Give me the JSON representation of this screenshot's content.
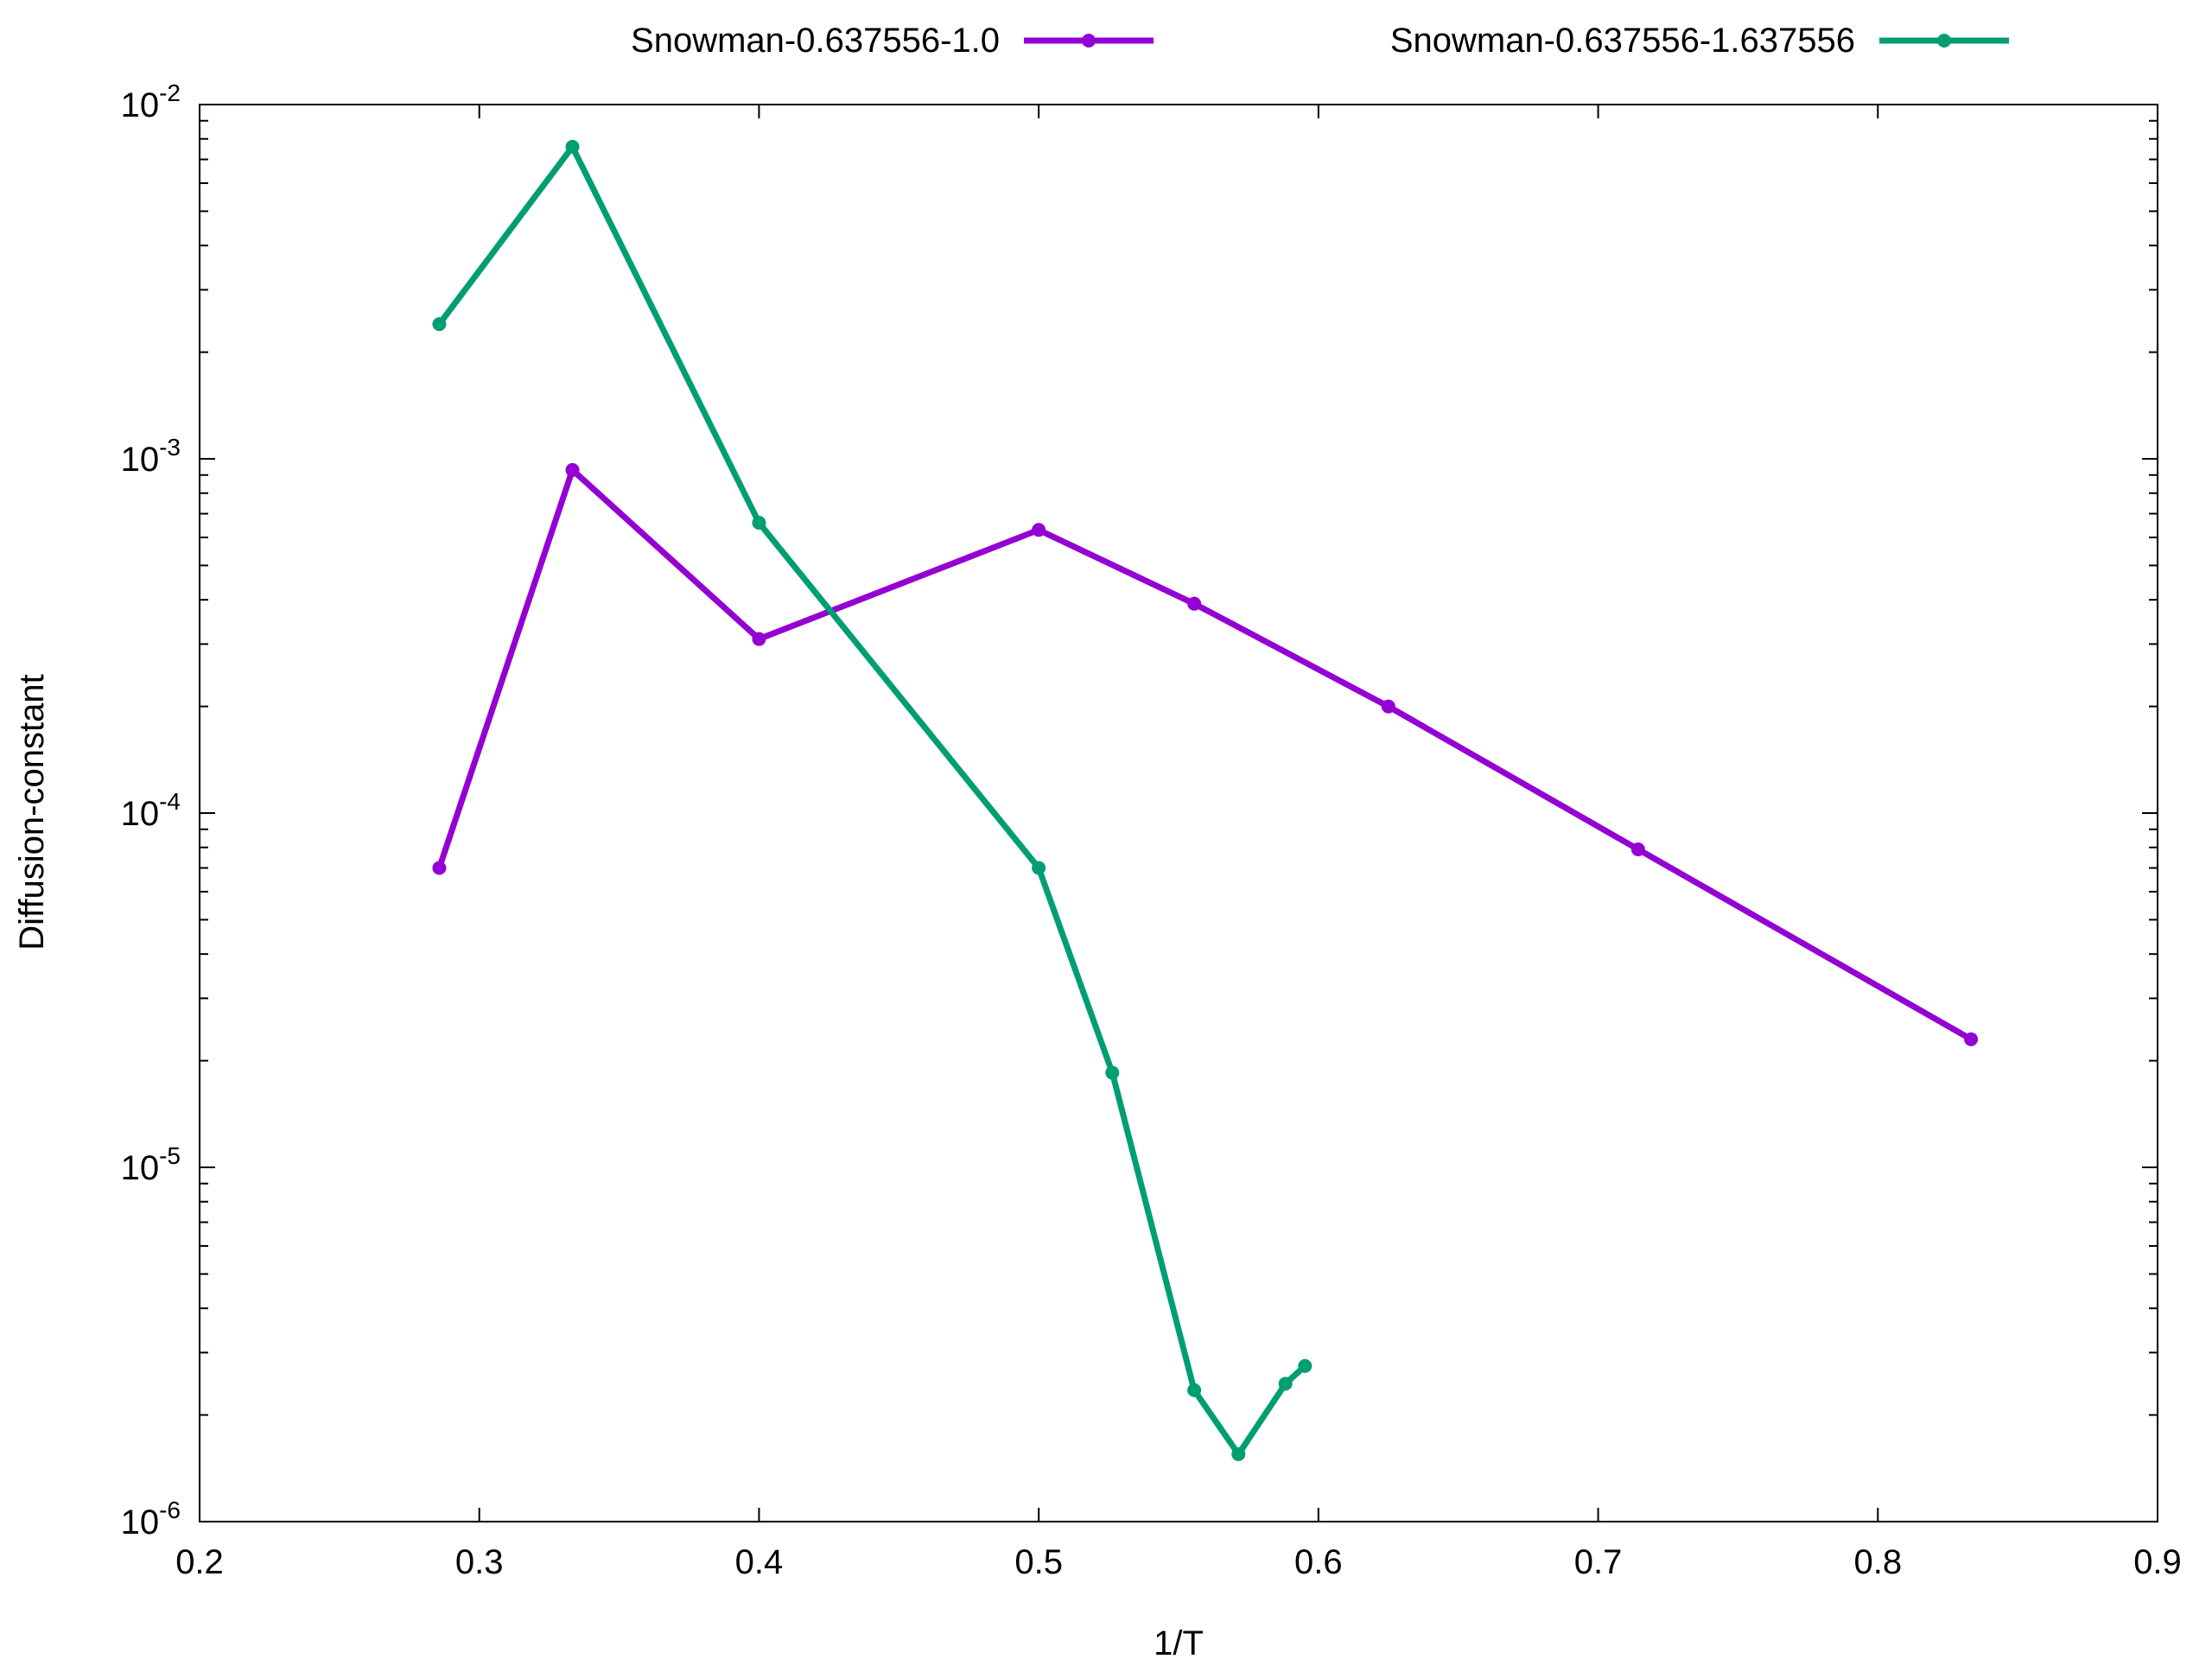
{
  "chart_data": {
    "type": "line",
    "title": "",
    "xlabel": "1/T",
    "ylabel": "Diffusion-constant",
    "xscale": "linear",
    "yscale": "log",
    "xlim": [
      0.2,
      0.9
    ],
    "ylim": [
      1e-06,
      0.01
    ],
    "grid": false,
    "legend_position": "top",
    "x_ticks": [
      {
        "value": 0.2,
        "label": "0.2"
      },
      {
        "value": 0.3,
        "label": "0.3"
      },
      {
        "value": 0.4,
        "label": "0.4"
      },
      {
        "value": 0.5,
        "label": "0.5"
      },
      {
        "value": 0.6,
        "label": "0.6"
      },
      {
        "value": 0.7,
        "label": "0.7"
      },
      {
        "value": 0.8,
        "label": "0.8"
      },
      {
        "value": 0.9,
        "label": "0.9"
      }
    ],
    "y_ticks": [
      {
        "value": 1e-06,
        "mantissa": "10",
        "exponent": "-6"
      },
      {
        "value": 1e-05,
        "mantissa": "10",
        "exponent": "-5"
      },
      {
        "value": 0.0001,
        "mantissa": "10",
        "exponent": "-4"
      },
      {
        "value": 0.001,
        "mantissa": "10",
        "exponent": "-3"
      },
      {
        "value": 0.01,
        "mantissa": "10",
        "exponent": "-2"
      }
    ],
    "series": [
      {
        "name": "Snowman-0.637556-1.0",
        "color": "#9400d3",
        "x": [
          0.2857,
          0.3333,
          0.4,
          0.5,
          0.5556,
          0.625,
          0.7143,
          0.8333
        ],
        "y": [
          7e-05,
          0.00093,
          0.00031,
          0.00063,
          0.00039,
          0.0002,
          7.9e-05,
          2.3e-05
        ]
      },
      {
        "name": "Snowman-0.637556-1.637556",
        "color": "#009e73",
        "x": [
          0.2857,
          0.3333,
          0.4,
          0.5,
          0.5263,
          0.5556,
          0.5714,
          0.5882,
          0.5952
        ],
        "y": [
          0.0024,
          0.0076,
          0.00066,
          7e-05,
          1.85e-05,
          2.35e-06,
          1.55e-06,
          2.45e-06,
          2.75e-06
        ]
      }
    ]
  }
}
